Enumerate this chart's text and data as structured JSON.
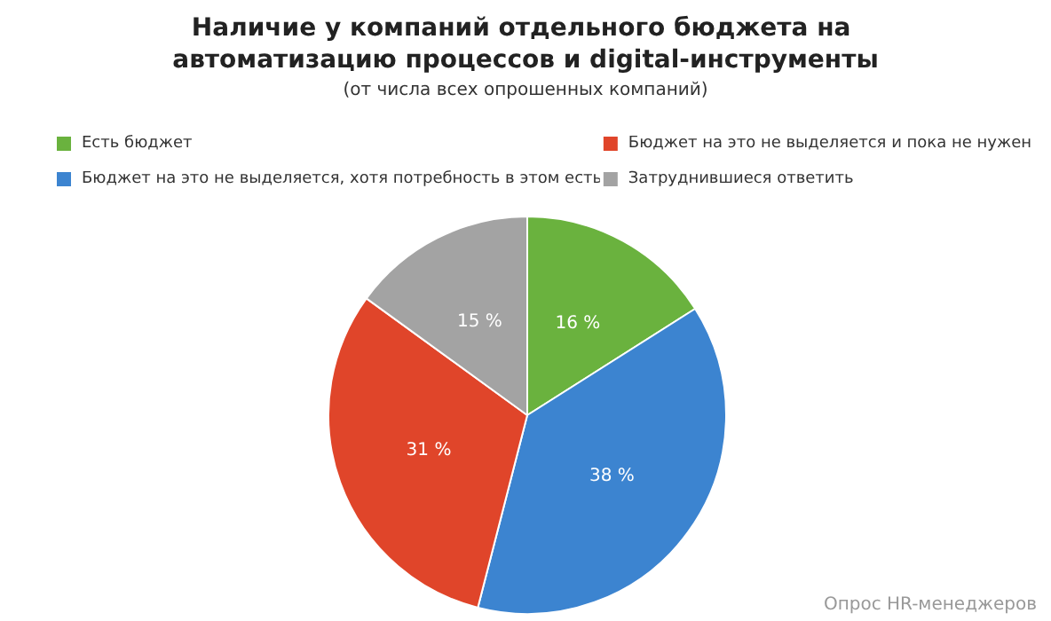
{
  "chart_data": {
    "type": "pie",
    "title": "Наличие у компаний отдельного бюджета на автоматизацию процессов и digital-инструменты",
    "subtitle": "(от числа всех опрошенных компаний)",
    "categories": [
      "Есть бюджет",
      "Бюджет на это не выделяется, хотя потребность в этом есть",
      "Бюджет на это не выделяется и пока не нужен",
      "Затруднившиеся ответить"
    ],
    "values": [
      16,
      38,
      31,
      15
    ],
    "colors": [
      "#6ab23e",
      "#3c84d0",
      "#e0452a",
      "#a3a3a3"
    ],
    "value_labels": [
      "16 %",
      "38 %",
      "31 %",
      "15 %"
    ],
    "legend": "top",
    "annotations": [
      "Опрос HR-менеджеров"
    ]
  }
}
